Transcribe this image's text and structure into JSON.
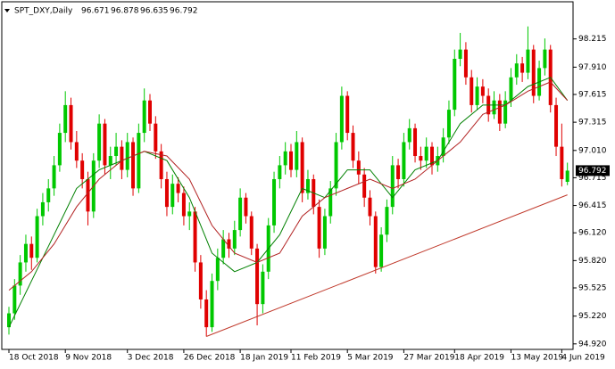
{
  "chart_data": {
    "type": "candlestick",
    "title": "SPT_DXY,Daily",
    "up_color": "#00c800",
    "down_color": "#e00000",
    "grid": false,
    "ylim": [
      94.87,
      98.52
    ],
    "yticks": [
      98.215,
      {
        "value": 97.91,
        "label": "97.910"
      },
      97.615,
      97.315,
      {
        "value": 97.01,
        "label": "97.010"
      },
      96.715,
      96.415,
      {
        "value": 96.12,
        "label": "96.120"
      },
      {
        "value": 95.82,
        "label": "95.820"
      },
      95.525,
      {
        "value": 95.22,
        "label": "95.220"
      },
      {
        "value": 94.92,
        "label": "94.920"
      }
    ],
    "categories": [
      "18 Oct 2018",
      null,
      null,
      null,
      null,
      null,
      null,
      null,
      null,
      null,
      "9 Nov 2018",
      null,
      null,
      null,
      null,
      null,
      null,
      null,
      null,
      null,
      null,
      "3 Dec 2018",
      null,
      null,
      null,
      null,
      null,
      null,
      null,
      null,
      null,
      "26 Dec 2018",
      null,
      null,
      null,
      null,
      null,
      null,
      null,
      null,
      null,
      "18 Jan 2019",
      null,
      null,
      null,
      null,
      null,
      null,
      null,
      null,
      "11 Feb 2019",
      null,
      null,
      null,
      null,
      null,
      null,
      null,
      null,
      null,
      "5 Mar 2019",
      null,
      null,
      null,
      null,
      null,
      null,
      null,
      null,
      null,
      "27 Mar 2019",
      null,
      null,
      null,
      null,
      null,
      null,
      null,
      null,
      "18 Apr 2019",
      null,
      null,
      null,
      null,
      null,
      null,
      null,
      null,
      null,
      "13 May 2019",
      null,
      null,
      null,
      null,
      null,
      null,
      null,
      null,
      "4 Jun 2019",
      null
    ],
    "ohlc": [
      [
        95.1,
        95.32,
        95.02,
        95.25
      ],
      [
        95.25,
        95.62,
        95.18,
        95.55
      ],
      [
        95.55,
        95.88,
        95.45,
        95.8
      ],
      [
        95.8,
        96.1,
        95.7,
        96.0
      ],
      [
        96.0,
        96.08,
        95.72,
        95.85
      ],
      [
        95.85,
        96.38,
        95.8,
        96.3
      ],
      [
        96.3,
        96.55,
        96.2,
        96.45
      ],
      [
        96.45,
        96.7,
        96.35,
        96.6
      ],
      [
        96.6,
        96.95,
        96.52,
        96.85
      ],
      [
        96.85,
        97.3,
        96.78,
        97.2
      ],
      [
        97.2,
        97.65,
        97.1,
        97.5
      ],
      [
        97.5,
        97.58,
        97.02,
        97.1
      ],
      [
        97.1,
        97.22,
        96.82,
        96.9
      ],
      [
        96.9,
        96.98,
        96.6,
        96.7
      ],
      [
        96.7,
        96.78,
        96.2,
        96.35
      ],
      [
        96.35,
        96.98,
        96.28,
        96.9
      ],
      [
        96.9,
        97.4,
        96.82,
        97.3
      ],
      [
        97.3,
        97.35,
        96.75,
        96.85
      ],
      [
        96.85,
        97.05,
        96.7,
        96.95
      ],
      [
        96.95,
        97.2,
        96.85,
        97.05
      ],
      [
        97.05,
        97.12,
        96.7,
        96.8
      ],
      [
        96.8,
        97.2,
        96.72,
        97.1
      ],
      [
        97.1,
        97.15,
        96.52,
        96.6
      ],
      [
        96.6,
        97.3,
        96.55,
        97.2
      ],
      [
        97.2,
        97.68,
        97.1,
        97.55
      ],
      [
        97.55,
        97.62,
        97.22,
        97.3
      ],
      [
        97.3,
        97.38,
        96.92,
        97.0
      ],
      [
        97.0,
        97.08,
        96.6,
        96.7
      ],
      [
        96.7,
        96.78,
        96.3,
        96.4
      ],
      [
        96.4,
        96.75,
        96.32,
        96.65
      ],
      [
        96.65,
        96.72,
        96.45,
        96.55
      ],
      [
        96.55,
        96.62,
        96.2,
        96.3
      ],
      [
        96.3,
        96.45,
        96.15,
        96.35
      ],
      [
        96.35,
        96.4,
        95.7,
        95.8
      ],
      [
        95.8,
        95.88,
        95.3,
        95.4
      ],
      [
        95.4,
        95.5,
        95.0,
        95.1
      ],
      [
        95.1,
        95.68,
        95.05,
        95.6
      ],
      [
        95.6,
        95.95,
        95.5,
        95.85
      ],
      [
        95.85,
        96.15,
        95.78,
        96.05
      ],
      [
        96.05,
        96.12,
        95.85,
        95.95
      ],
      [
        95.95,
        96.25,
        95.88,
        96.15
      ],
      [
        96.15,
        96.6,
        96.08,
        96.5
      ],
      [
        96.5,
        96.55,
        96.22,
        96.3
      ],
      [
        96.3,
        96.35,
        95.88,
        95.95
      ],
      [
        95.95,
        96.0,
        95.12,
        95.35
      ],
      [
        95.35,
        95.78,
        95.25,
        95.7
      ],
      [
        95.7,
        96.28,
        95.62,
        96.2
      ],
      [
        96.2,
        96.78,
        96.12,
        96.7
      ],
      [
        96.7,
        96.95,
        96.6,
        96.85
      ],
      [
        96.85,
        97.1,
        96.75,
        97.0
      ],
      [
        97.0,
        97.08,
        96.72,
        96.8
      ],
      [
        96.8,
        97.22,
        96.72,
        97.1
      ],
      [
        97.1,
        97.15,
        96.45,
        96.55
      ],
      [
        96.55,
        96.8,
        96.48,
        96.7
      ],
      [
        96.7,
        96.75,
        96.32,
        96.4
      ],
      [
        96.4,
        96.48,
        95.85,
        95.95
      ],
      [
        95.95,
        96.38,
        95.88,
        96.3
      ],
      [
        96.3,
        96.68,
        96.22,
        96.6
      ],
      [
        96.6,
        97.2,
        96.52,
        97.1
      ],
      [
        97.1,
        97.7,
        97.02,
        97.6
      ],
      [
        97.6,
        97.65,
        97.12,
        97.2
      ],
      [
        97.2,
        97.28,
        96.82,
        96.9
      ],
      [
        96.9,
        97.0,
        96.65,
        96.75
      ],
      [
        96.75,
        96.82,
        96.4,
        96.5
      ],
      [
        96.5,
        96.58,
        96.2,
        96.3
      ],
      [
        96.3,
        96.35,
        95.68,
        95.75
      ],
      [
        95.75,
        96.18,
        95.7,
        96.1
      ],
      [
        96.1,
        96.48,
        96.02,
        96.4
      ],
      [
        96.4,
        96.95,
        96.32,
        96.85
      ],
      [
        96.85,
        96.92,
        96.6,
        96.7
      ],
      [
        96.7,
        97.2,
        96.62,
        97.1
      ],
      [
        97.1,
        97.35,
        97.02,
        97.25
      ],
      [
        97.25,
        97.3,
        96.88,
        96.95
      ],
      [
        96.95,
        97.05,
        96.8,
        96.9
      ],
      [
        96.9,
        97.15,
        96.82,
        97.05
      ],
      [
        97.05,
        97.1,
        96.75,
        96.85
      ],
      [
        96.85,
        97.05,
        96.78,
        96.95
      ],
      [
        96.95,
        97.25,
        96.88,
        97.15
      ],
      [
        97.15,
        97.55,
        97.08,
        97.45
      ],
      [
        97.45,
        98.1,
        97.38,
        98.0
      ],
      [
        98.0,
        98.28,
        97.92,
        98.1
      ],
      [
        98.1,
        98.18,
        97.72,
        97.8
      ],
      [
        97.8,
        97.88,
        97.42,
        97.5
      ],
      [
        97.5,
        97.8,
        97.45,
        97.7
      ],
      [
        97.7,
        97.78,
        97.52,
        97.6
      ],
      [
        97.6,
        97.68,
        97.32,
        97.4
      ],
      [
        97.4,
        97.65,
        97.35,
        97.55
      ],
      [
        97.55,
        97.62,
        97.22,
        97.3
      ],
      [
        97.3,
        97.65,
        97.25,
        97.55
      ],
      [
        97.55,
        97.9,
        97.48,
        97.8
      ],
      [
        97.8,
        98.05,
        97.72,
        97.95
      ],
      [
        97.95,
        98.02,
        97.75,
        97.85
      ],
      [
        97.85,
        98.35,
        97.78,
        98.1
      ],
      [
        98.1,
        98.15,
        97.52,
        97.6
      ],
      [
        97.6,
        97.98,
        97.55,
        97.9
      ],
      [
        97.9,
        98.22,
        97.82,
        98.1
      ],
      [
        98.1,
        98.15,
        97.42,
        97.5
      ],
      [
        97.5,
        97.58,
        96.95,
        97.05
      ],
      [
        97.05,
        97.3,
        96.62,
        96.7
      ],
      [
        96.671,
        96.878,
        96.635,
        96.792
      ]
    ],
    "series": [
      {
        "color": "#008000",
        "x": [
          0,
          4,
          8,
          12,
          16,
          20,
          24,
          28,
          32,
          36,
          40,
          44,
          48,
          52,
          56,
          60,
          64,
          68,
          72,
          76,
          80,
          84,
          88,
          92,
          96,
          99
        ],
        "values": [
          95.1,
          95.6,
          96.1,
          96.6,
          96.8,
          96.9,
          97.0,
          96.9,
          96.5,
          95.9,
          95.7,
          95.8,
          96.1,
          96.6,
          96.5,
          96.8,
          96.8,
          96.5,
          96.8,
          96.9,
          97.3,
          97.5,
          97.5,
          97.7,
          97.8,
          97.55
        ]
      },
      {
        "color": "#b22222",
        "x": [
          0,
          4,
          8,
          12,
          16,
          20,
          24,
          28,
          32,
          36,
          40,
          44,
          48,
          52,
          56,
          60,
          64,
          68,
          72,
          76,
          80,
          84,
          88,
          92,
          96,
          99
        ],
        "values": [
          95.5,
          95.7,
          96.0,
          96.4,
          96.7,
          96.9,
          97.0,
          96.95,
          96.7,
          96.2,
          95.9,
          95.8,
          95.9,
          96.3,
          96.5,
          96.6,
          96.7,
          96.6,
          96.7,
          96.9,
          97.1,
          97.4,
          97.5,
          97.65,
          97.75,
          97.55
        ]
      }
    ],
    "trend_line": {
      "color": "#c0392b",
      "x": [
        35,
        99
      ],
      "values": [
        95.0,
        96.53
      ]
    }
  }
}
